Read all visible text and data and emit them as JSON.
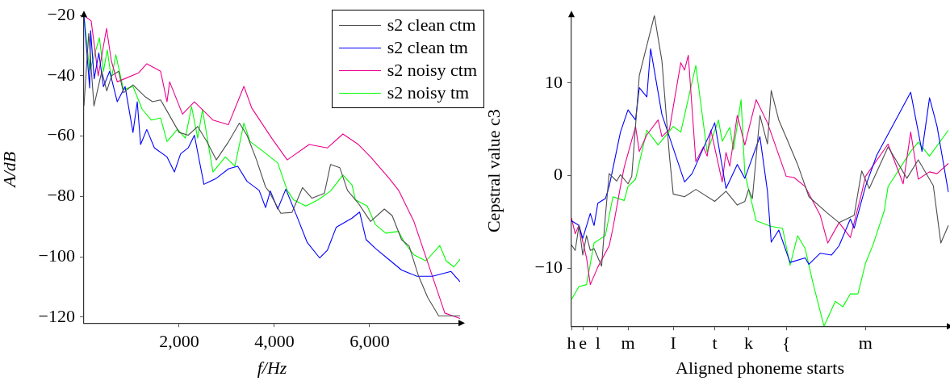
{
  "chart_data": [
    {
      "type": "line",
      "xlabel": "f/Hz",
      "ylabel": "A/dB",
      "xlim": [
        0,
        7900
      ],
      "ylim": [
        -122,
        -20
      ],
      "xticks": [
        {
          "value": 2000,
          "label": "2,000"
        },
        {
          "value": 4000,
          "label": "4,000"
        },
        {
          "value": 6000,
          "label": "6,000"
        }
      ],
      "yticks": [
        {
          "value": -20,
          "label": "−20"
        },
        {
          "value": -40,
          "label": "−40"
        },
        {
          "value": -60,
          "label": "−60"
        },
        {
          "value": -80,
          "label": "−80"
        },
        {
          "value": -100,
          "label": "−100"
        },
        {
          "value": -120,
          "label": "−120"
        }
      ],
      "legend": "top right",
      "grid": false,
      "series": [
        {
          "name": "s2 clean ctm",
          "color": "#4d4d4d",
          "x": [
            0,
            100,
            210,
            375,
            480,
            580,
            730,
            830,
            1030,
            1290,
            1440,
            1610,
            1745,
            2000,
            2190,
            2390,
            2580,
            2780,
            3040,
            3265,
            3425,
            3625,
            3815,
            3880,
            4135,
            4370,
            4590,
            4790,
            5050,
            5180,
            5375,
            5535,
            5760,
            6020,
            6310,
            6475,
            6670,
            6830,
            7030,
            7220,
            7450,
            7900
          ],
          "values": [
            -50,
            -26,
            -50,
            -38.5,
            -45,
            -40,
            -38.5,
            -45.6,
            -43,
            -47,
            -48.6,
            -48,
            -51.7,
            -58.8,
            -59.7,
            -56.8,
            -61.8,
            -67.9,
            -61.8,
            -55.7,
            -59.7,
            -67.9,
            -76.9,
            -78.2,
            -85.6,
            -85.3,
            -77.1,
            -80.6,
            -79,
            -69.4,
            -70.5,
            -78,
            -82.2,
            -88.3,
            -84.2,
            -86.4,
            -94.3,
            -96.5,
            -106.5,
            -113.5,
            -119.6,
            -119.6
          ]
        },
        {
          "name": "s2 clean tm",
          "color": "#0000ff",
          "x": [
            0,
            120,
            140,
            215,
            313,
            410,
            540,
            700,
            865,
            1030,
            1120,
            1190,
            1320,
            1480,
            1745,
            1900,
            2030,
            2190,
            2320,
            2520,
            2780,
            3040,
            3230,
            3425,
            3680,
            3815,
            3915,
            4070,
            4240,
            4460,
            4690,
            4950,
            5115,
            5300,
            5630,
            5790,
            5925,
            6120,
            6440,
            6670,
            6995,
            7320,
            7710,
            7900
          ],
          "values": [
            -20,
            -44,
            -25,
            -41,
            -32.4,
            -43.6,
            -38.5,
            -48.6,
            -43.6,
            -58.8,
            -48.6,
            -62.8,
            -57.8,
            -63.9,
            -66.9,
            -71.9,
            -65.9,
            -63.9,
            -59.7,
            -76,
            -74,
            -70.8,
            -70,
            -75,
            -78,
            -83.7,
            -78.2,
            -84.2,
            -77.6,
            -86.1,
            -95.3,
            -100.4,
            -97.8,
            -90.2,
            -87.2,
            -85.2,
            -94.3,
            -97.2,
            -101.4,
            -104.4,
            -106.5,
            -106.5,
            -104.9,
            -108.3
          ]
        },
        {
          "name": "s2 noisy ctm",
          "color": "#ec008c",
          "x": [
            0,
            152,
            300,
            475,
            575,
            700,
            1150,
            1320,
            1610,
            1745,
            1800,
            2070,
            2320,
            2710,
            3035,
            3360,
            3525,
            3950,
            4270,
            4730,
            5115,
            5440,
            5765,
            6020,
            6410,
            6610,
            6930,
            7320,
            7580,
            7900
          ],
          "values": [
            -20,
            -21.8,
            -40,
            -24.3,
            -35,
            -42,
            -39,
            -36,
            -38.5,
            -48.6,
            -42,
            -52.7,
            -48.6,
            -54.7,
            -56.2,
            -43.5,
            -50.7,
            -60.8,
            -67.9,
            -62.8,
            -63.9,
            -59.3,
            -62.8,
            -66.9,
            -74,
            -78,
            -88.3,
            -106.5,
            -118.7,
            -120.5
          ]
        },
        {
          "name": "s2 noisy tm",
          "color": "#00ff00",
          "x": [
            0,
            120,
            325,
            410,
            490,
            575,
            670,
            830,
            1030,
            1220,
            1415,
            1610,
            1745,
            1965,
            2130,
            2260,
            2390,
            2490,
            2710,
            2970,
            3170,
            3360,
            3490,
            3750,
            4070,
            4270,
            4400,
            4660,
            4920,
            5180,
            5440,
            5630,
            5700,
            5950,
            6120,
            6340,
            6610,
            6730,
            6930,
            7185,
            7475,
            7610,
            7770,
            7900
          ],
          "values": [
            -20,
            -38.5,
            -27.4,
            -38.5,
            -31.4,
            -41,
            -33,
            -44.6,
            -43.5,
            -51,
            -54.7,
            -54,
            -61.8,
            -57.7,
            -60.7,
            -50.2,
            -60.7,
            -51.2,
            -71.9,
            -66.9,
            -70,
            -55.7,
            -61.8,
            -64.9,
            -68.9,
            -78,
            -81.1,
            -83.2,
            -81.1,
            -78.2,
            -72.9,
            -76.2,
            -81.1,
            -83.2,
            -89.3,
            -92.2,
            -91.6,
            -95.3,
            -99.4,
            -101.4,
            -96.3,
            -101.4,
            -103.4,
            -100.8
          ]
        }
      ]
    },
    {
      "type": "line",
      "xlabel": "Aligned phoneme starts",
      "ylabel": "Cepstral value c3",
      "ylim": [
        -16.3,
        17.3
      ],
      "categories": [
        "h",
        null,
        null,
        "e",
        null,
        null,
        null,
        "l",
        null,
        null,
        null,
        null,
        null,
        null,
        null,
        "m",
        null,
        null,
        null,
        null,
        null,
        null,
        null,
        null,
        null,
        null,
        null,
        "I",
        null,
        null,
        null,
        null,
        null,
        null,
        null,
        null,
        null,
        null,
        "t",
        null,
        null,
        null,
        null,
        null,
        null,
        null,
        null,
        "k",
        null,
        null,
        null,
        null,
        null,
        null,
        null,
        null,
        null,
        "{",
        null,
        null,
        null,
        null,
        null,
        null,
        null,
        null,
        null,
        null,
        null,
        null,
        null,
        null,
        null,
        null,
        null,
        null,
        null,
        null,
        "m",
        null,
        null,
        null,
        null,
        null,
        null,
        null,
        null,
        null,
        null,
        null,
        null,
        null,
        null,
        null,
        null,
        null,
        null,
        null,
        null,
        null,
        null
      ],
      "yticks": [
        {
          "value": -10,
          "label": "−10"
        },
        0,
        10
      ],
      "grid": false,
      "series": [
        {
          "color": "#4d4d4d",
          "values": [
            -7.5,
            -8.1,
            -5.4,
            -8.6,
            -6.5,
            -8.1,
            -7.9,
            null,
            -9.8,
            -4.4,
            0.2,
            null,
            -0.6,
            0.1,
            null,
            -0.9,
            -0.1,
            null,
            10.8,
            null,
            null,
            null,
            17.3,
            null,
            12.4,
            null,
            2.1,
            -2,
            null,
            null,
            -2.3,
            null,
            null,
            -1.5,
            null,
            null,
            null,
            null,
            -2.8,
            null,
            null,
            -1.7,
            null,
            null,
            -3.2,
            null,
            -2.8,
            -1.5,
            -2.5,
            null,
            6.5,
            null,
            3.4,
            9.2,
            null,
            6,
            null,
            4.1,
            null,
            null,
            1.2,
            null,
            null,
            -2.3,
            null,
            null,
            null,
            null,
            -4.1,
            null,
            null,
            -5.1,
            null,
            null,
            null,
            -4.3,
            null,
            0.5,
            null,
            -1.4,
            null,
            null,
            null,
            null,
            3.1,
            null,
            null,
            null,
            null,
            -0.3,
            null,
            null,
            1.7,
            null,
            null,
            null,
            -1.1,
            null,
            -7.3,
            null,
            -5.4
          ]
        },
        {
          "color": "#0000ff",
          "values": [
            -4.9,
            null,
            -5.4,
            -6.8,
            null,
            -4.1,
            -5.4,
            -3,
            null,
            -2.5,
            -1.2,
            null,
            null,
            4.7,
            null,
            7.1,
            null,
            6,
            9.5,
            null,
            8.5,
            13.7,
            null,
            null,
            6.6,
            null,
            null,
            null,
            null,
            null,
            -0.7,
            null,
            0.2,
            null,
            null,
            null,
            null,
            null,
            5.7,
            null,
            null,
            -1.4,
            null,
            null,
            1.2,
            null,
            -0.3,
            null,
            null,
            null,
            4.2,
            null,
            -1.7,
            -7.2,
            null,
            -5.9,
            null,
            null,
            -9.4,
            null,
            null,
            null,
            -8.9,
            -9.6,
            null,
            null,
            -8.4,
            null,
            null,
            -8.6,
            null,
            -7.6,
            null,
            null,
            -4.7,
            -5.7,
            null,
            null,
            -1.2,
            null,
            null,
            2.2,
            null,
            null,
            null,
            null,
            null,
            null,
            null,
            null,
            9,
            null,
            null,
            2.6,
            null,
            8.4,
            null,
            5.3,
            null,
            null,
            -1.8
          ]
        },
        {
          "color": "#ec008c",
          "values": [
            -4.6,
            -6.3,
            -5.4,
            null,
            -8.9,
            -11.8,
            null,
            -9.9,
            null,
            null,
            -7.6,
            -5.7,
            null,
            -1.2,
            0.9,
            null,
            null,
            5.3,
            2.6,
            null,
            4.4,
            null,
            null,
            6,
            4.2,
            null,
            5,
            null,
            null,
            12.2,
            11.4,
            13,
            null,
            1.5,
            null,
            3.1,
            2.1,
            4.9,
            null,
            null,
            -0.7,
            2.5,
            1,
            null,
            6.5,
            null,
            3.3,
            null,
            null,
            8.2,
            null,
            null,
            5.7,
            null,
            null,
            null,
            null,
            -0.1,
            null,
            -0.2,
            null,
            null,
            -1.2,
            null,
            null,
            null,
            -4.3,
            null,
            -7.3,
            null,
            null,
            -5.1,
            null,
            null,
            -6.7,
            null,
            null,
            -1.9,
            -0.1,
            null,
            null,
            null,
            null,
            null,
            3.4,
            null,
            null,
            null,
            -0.9,
            null,
            4.7,
            null,
            -0.4,
            null,
            null,
            0.4,
            null,
            0.2,
            null,
            null,
            1.3
          ]
        },
        {
          "color": "#00ff00",
          "values": [
            -13.4,
            null,
            -12,
            null,
            -11.8,
            null,
            -7.3,
            null,
            null,
            -6.5,
            null,
            -2.3,
            null,
            null,
            -2.7,
            -1.2,
            null,
            -0.4,
            null,
            null,
            4.9,
            null,
            null,
            3.3,
            null,
            null,
            null,
            5.3,
            null,
            4.7,
            null,
            null,
            null,
            11.9,
            null,
            null,
            2.5,
            null,
            null,
            6,
            3.7,
            null,
            5.2,
            2.8,
            null,
            8.2,
            0.2,
            null,
            null,
            -4.9,
            null,
            null,
            null,
            -5.5,
            null,
            null,
            -5.7,
            null,
            -9.7,
            null,
            -6.5,
            null,
            -7.9,
            null,
            -11.5,
            null,
            null,
            -16.3,
            null,
            null,
            -13.6,
            null,
            -14.2,
            null,
            -12.8,
            null,
            -12.8,
            null,
            -9.5,
            null,
            -7.5,
            null,
            null,
            -3.8,
            -1.2,
            null,
            null,
            null,
            null,
            null,
            2.6,
            null,
            3.6,
            null,
            null,
            2.1,
            null,
            null,
            null,
            null,
            4.9
          ]
        }
      ]
    }
  ]
}
